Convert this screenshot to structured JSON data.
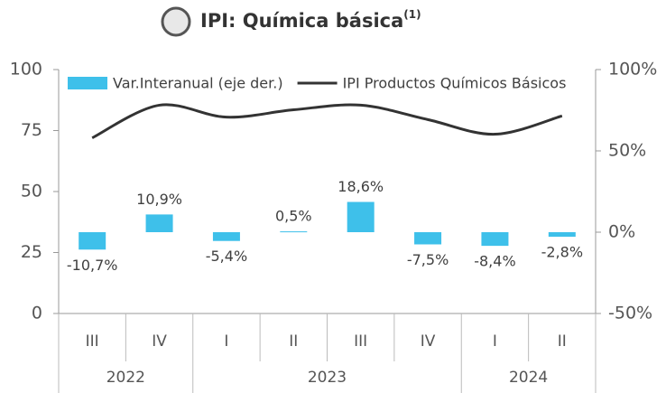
{
  "chart_data": {
    "type": "bar-line",
    "title": "IPI: Química básica",
    "title_note": "(1)",
    "groups": [
      {
        "label": "2022",
        "categories": [
          "III",
          "IV"
        ]
      },
      {
        "label": "2023",
        "categories": [
          "I",
          "II",
          "III",
          "IV"
        ]
      },
      {
        "label": "2024",
        "categories": [
          "I",
          "II"
        ]
      }
    ],
    "series": [
      {
        "name": "Var.Interanual (eje der.)",
        "type": "bar",
        "axis": "y2",
        "color": "#3ec0ea",
        "values": [
          -10.7,
          10.9,
          -5.4,
          0.5,
          18.6,
          -7.5,
          -8.4,
          -2.8
        ],
        "value_labels": [
          "-10,7%",
          "10,9%",
          "-5,4%",
          "0,5%",
          "18,6%",
          "-7,5%",
          "-8,4%",
          "-2,8%"
        ]
      },
      {
        "name": "IPI Productos Químicos Básicos",
        "type": "line",
        "color": "#333333",
        "values": [
          72,
          85.4,
          80.5,
          83.5,
          85.4,
          79.5,
          73.5,
          81
        ]
      }
    ],
    "ylim": [
      0,
      100
    ],
    "yticks": [
      0,
      25,
      50,
      75,
      100
    ],
    "y2lim": [
      -50,
      100
    ],
    "y2ticks": [
      {
        "value": -50,
        "label": "-50%"
      },
      {
        "value": 0,
        "label": "0%"
      },
      {
        "value": 50,
        "label": "50%"
      },
      {
        "value": 100,
        "label": "100%"
      }
    ],
    "legend": "top"
  }
}
